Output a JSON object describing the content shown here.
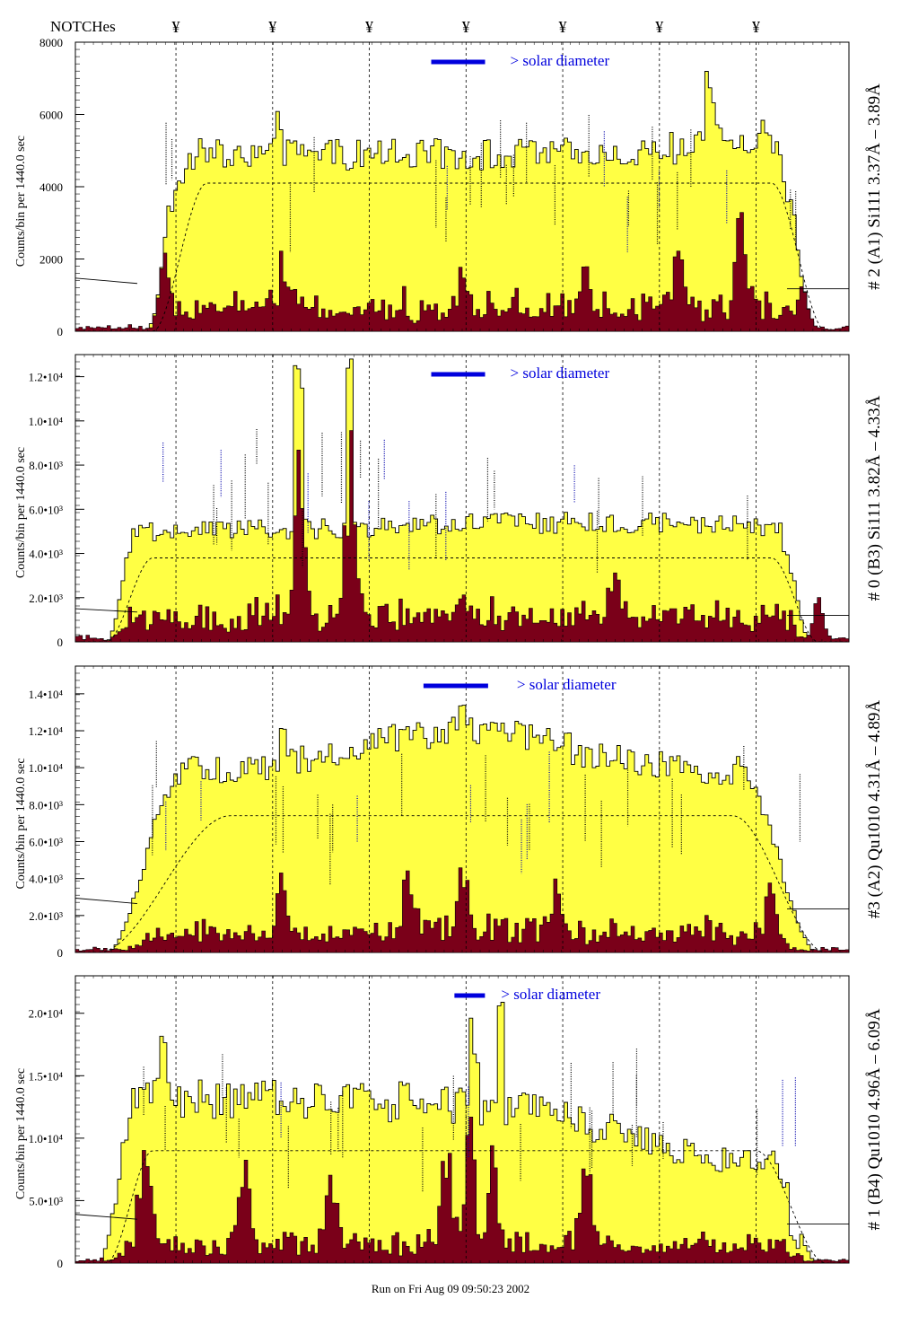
{
  "header": {
    "notches_label": "NOTCHes",
    "notch_symbol": "¥"
  },
  "footer": {
    "run_text": "Run on Fri Aug 09 09:50:23 2002"
  },
  "colors": {
    "fill_yellow": "#ffff44",
    "fill_maroon": "#7a0019",
    "solar_bar": "#0000dd",
    "annotation_blue": "#0000aa"
  },
  "chart_data": [
    {
      "type": "bar",
      "ylabel": "Counts/bin per   1440.0 sec",
      "side_label": "# 2 (A1) Si111  3.37Å – 3.89Å",
      "legend": "> solar diameter",
      "ylim": [
        0,
        8000
      ],
      "yticks": [
        {
          "v": 0,
          "label": "0"
        },
        {
          "v": 2000,
          "label": "2000"
        },
        {
          "v": 4000,
          "label": "4000"
        },
        {
          "v": 6000,
          "label": "6000"
        },
        {
          "v": 8000,
          "label": "8000"
        }
      ],
      "notch_positions": [
        0.13,
        0.255,
        0.38,
        0.505,
        0.63,
        0.755,
        0.88
      ],
      "profile": {
        "plateau": 4900,
        "bump": 500,
        "bumpCenter": 0.9,
        "bumpWidth": 0.12,
        "rise": [
          0.09,
          0.15
        ],
        "fall": [
          0.9,
          0.96
        ],
        "noise": 0.09,
        "spikes": [
          [
            0.115,
            1.34
          ],
          [
            0.264,
            1.25
          ],
          [
            0.82,
            1.3
          ],
          [
            0.93,
            1.15
          ]
        ]
      },
      "dark": {
        "base": 750,
        "peaks": [
          [
            0.115,
            1900
          ],
          [
            0.27,
            1300
          ],
          [
            0.5,
            1100
          ],
          [
            0.66,
            1200
          ],
          [
            0.78,
            1500
          ],
          [
            0.86,
            2000
          ],
          [
            0.94,
            1200
          ]
        ]
      },
      "dashed": {
        "level": 4100,
        "rise": [
          0.1,
          0.17
        ],
        "fall": [
          0.9,
          0.97
        ]
      }
    },
    {
      "type": "bar",
      "ylabel": "Counts/bin per   1440.0 sec",
      "side_label": "# 0 (B3) Si111  3.82Å – 4.33Å",
      "legend": "> solar diameter",
      "ylim": [
        0,
        13000
      ],
      "yticks": [
        {
          "v": 0,
          "label": "0"
        },
        {
          "v": 2000,
          "label": "2.0•10³"
        },
        {
          "v": 4000,
          "label": "4.0•10³"
        },
        {
          "v": 6000,
          "label": "6.0•10³"
        },
        {
          "v": 8000,
          "label": "8.0•10³"
        },
        {
          "v": 10000,
          "label": "1.0•10⁴"
        },
        {
          "v": 12000,
          "label": "1.2•10⁴"
        }
      ],
      "notch_positions": [
        0.13,
        0.255,
        0.38,
        0.505,
        0.63,
        0.755,
        0.88
      ],
      "profile": {
        "plateau": 5000,
        "bump": 400,
        "bumpCenter": 0.65,
        "bumpWidth": 0.3,
        "rise": [
          0.04,
          0.08
        ],
        "fall": [
          0.91,
          0.95
        ],
        "noise": 0.09,
        "spikes": [
          [
            0.29,
            2.3
          ],
          [
            0.355,
            2.35
          ],
          [
            0.92,
            0.9
          ]
        ]
      },
      "dark": {
        "base": 1300,
        "peaks": [
          [
            0.29,
            6500
          ],
          [
            0.355,
            6300
          ],
          [
            0.5,
            1800
          ],
          [
            0.7,
            1900
          ],
          [
            0.96,
            1500
          ]
        ]
      },
      "dashed": {
        "level": 3800,
        "rise": [
          0.04,
          0.1
        ],
        "fall": [
          0.9,
          0.96
        ]
      }
    },
    {
      "type": "bar",
      "ylabel": "Counts/bin per   1440.0 sec",
      "side_label": "#3 (A2) Qu1010  4.31Å – 4.89Å",
      "legend": "> solar diameter",
      "ylim": [
        0,
        15500
      ],
      "yticks": [
        {
          "v": 0,
          "label": "0"
        },
        {
          "v": 2000,
          "label": "2.0•10³"
        },
        {
          "v": 4000,
          "label": "4.0•10³"
        },
        {
          "v": 6000,
          "label": "6.0•10³"
        },
        {
          "v": 8000,
          "label": "8.0•10³"
        },
        {
          "v": 10000,
          "label": "1.0•10⁴"
        },
        {
          "v": 12000,
          "label": "1.2•10⁴"
        },
        {
          "v": 14000,
          "label": "1.4•10⁴"
        }
      ],
      "notch_positions": [
        0.13,
        0.255,
        0.38,
        0.505,
        0.63,
        0.755,
        0.88
      ],
      "profile": {
        "plateau": 9800,
        "bump": 2200,
        "bumpCenter": 0.5,
        "bumpWidth": 0.18,
        "rise": [
          0.04,
          0.14
        ],
        "fall": [
          0.86,
          0.96
        ],
        "noise": 0.08,
        "spikes": [
          [
            0.5,
            1.2
          ],
          [
            0.27,
            1.1
          ]
        ]
      },
      "dark": {
        "base": 1300,
        "peaks": [
          [
            0.27,
            3000
          ],
          [
            0.43,
            2800
          ],
          [
            0.5,
            2600
          ],
          [
            0.62,
            2500
          ],
          [
            0.9,
            2200
          ]
        ]
      },
      "dashed": {
        "level": 7400,
        "rise": [
          0.03,
          0.2
        ],
        "fall": [
          0.85,
          0.97
        ]
      }
    },
    {
      "type": "bar",
      "ylabel": "Counts/bin per   1440.0 sec",
      "side_label": "# 1 (B4) Qu1010 4.96Å – 6.09Å",
      "legend": "> solar diameter",
      "ylim": [
        0,
        23000
      ],
      "yticks": [
        {
          "v": 0,
          "label": "0"
        },
        {
          "v": 5000,
          "label": "5.0•10³"
        },
        {
          "v": 10000,
          "label": "1.0•10⁴"
        },
        {
          "v": 15000,
          "label": "1.5•10⁴"
        },
        {
          "v": 20000,
          "label": "2.0•10⁴"
        }
      ],
      "notch_positions": [
        0.13,
        0.255,
        0.38,
        0.505,
        0.63,
        0.755,
        0.88
      ],
      "profile": {
        "plateau": 13000,
        "bump": -5000,
        "bumpCenter": 0.88,
        "bumpWidth": 0.22,
        "rise": [
          0.03,
          0.08
        ],
        "fall": [
          0.9,
          0.96
        ],
        "noise": 0.13,
        "spikes": [
          [
            0.55,
            1.6
          ],
          [
            0.515,
            1.45
          ],
          [
            0.11,
            1.3
          ],
          [
            0.93,
            0.4
          ]
        ]
      },
      "dark": {
        "base": 1800,
        "peaks": [
          [
            0.09,
            7500
          ],
          [
            0.22,
            5500
          ],
          [
            0.33,
            5000
          ],
          [
            0.48,
            7000
          ],
          [
            0.51,
            8000
          ],
          [
            0.54,
            6500
          ],
          [
            0.66,
            5200
          ]
        ]
      },
      "dashed": {
        "level": 9000,
        "rise": [
          0.04,
          0.1
        ],
        "fall": [
          0.88,
          0.97
        ]
      }
    }
  ]
}
